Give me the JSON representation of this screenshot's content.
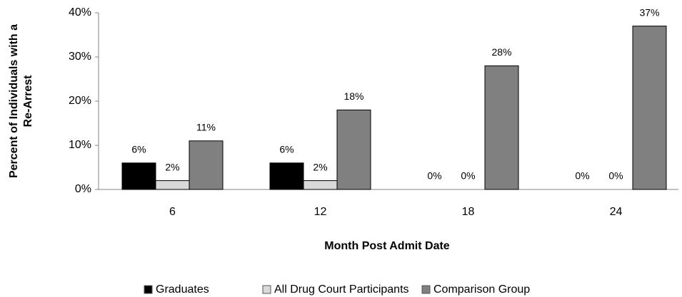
{
  "chart_data": {
    "type": "bar",
    "xlabel": "Month Post Admit Date",
    "ylabel": [
      "Percent of Individuals with a",
      "Re-Arrest"
    ],
    "categories": [
      "6",
      "12",
      "18",
      "24"
    ],
    "series": [
      {
        "name": "Graduates",
        "color": "#000000",
        "values": [
          6,
          6,
          0,
          0
        ],
        "value_labels": [
          "6%",
          "6%",
          "0%",
          "0%"
        ]
      },
      {
        "name": "All Drug Court Participants",
        "color": "#d9d9d9",
        "values": [
          2,
          2,
          0,
          0
        ],
        "value_labels": [
          "2%",
          "2%",
          "0%",
          "0%"
        ]
      },
      {
        "name": "Comparison Group",
        "color": "#808080",
        "values": [
          11,
          18,
          28,
          37
        ],
        "value_labels": [
          "11%",
          "18%",
          "28%",
          "37%"
        ]
      }
    ],
    "ylim": [
      0,
      40
    ],
    "yticks": [
      {
        "value": 0,
        "label": "0%"
      },
      {
        "value": 10,
        "label": "10%"
      },
      {
        "value": 20,
        "label": "20%"
      },
      {
        "value": 30,
        "label": "30%"
      },
      {
        "value": 40,
        "label": "40%"
      }
    ],
    "legend": "bottom"
  }
}
